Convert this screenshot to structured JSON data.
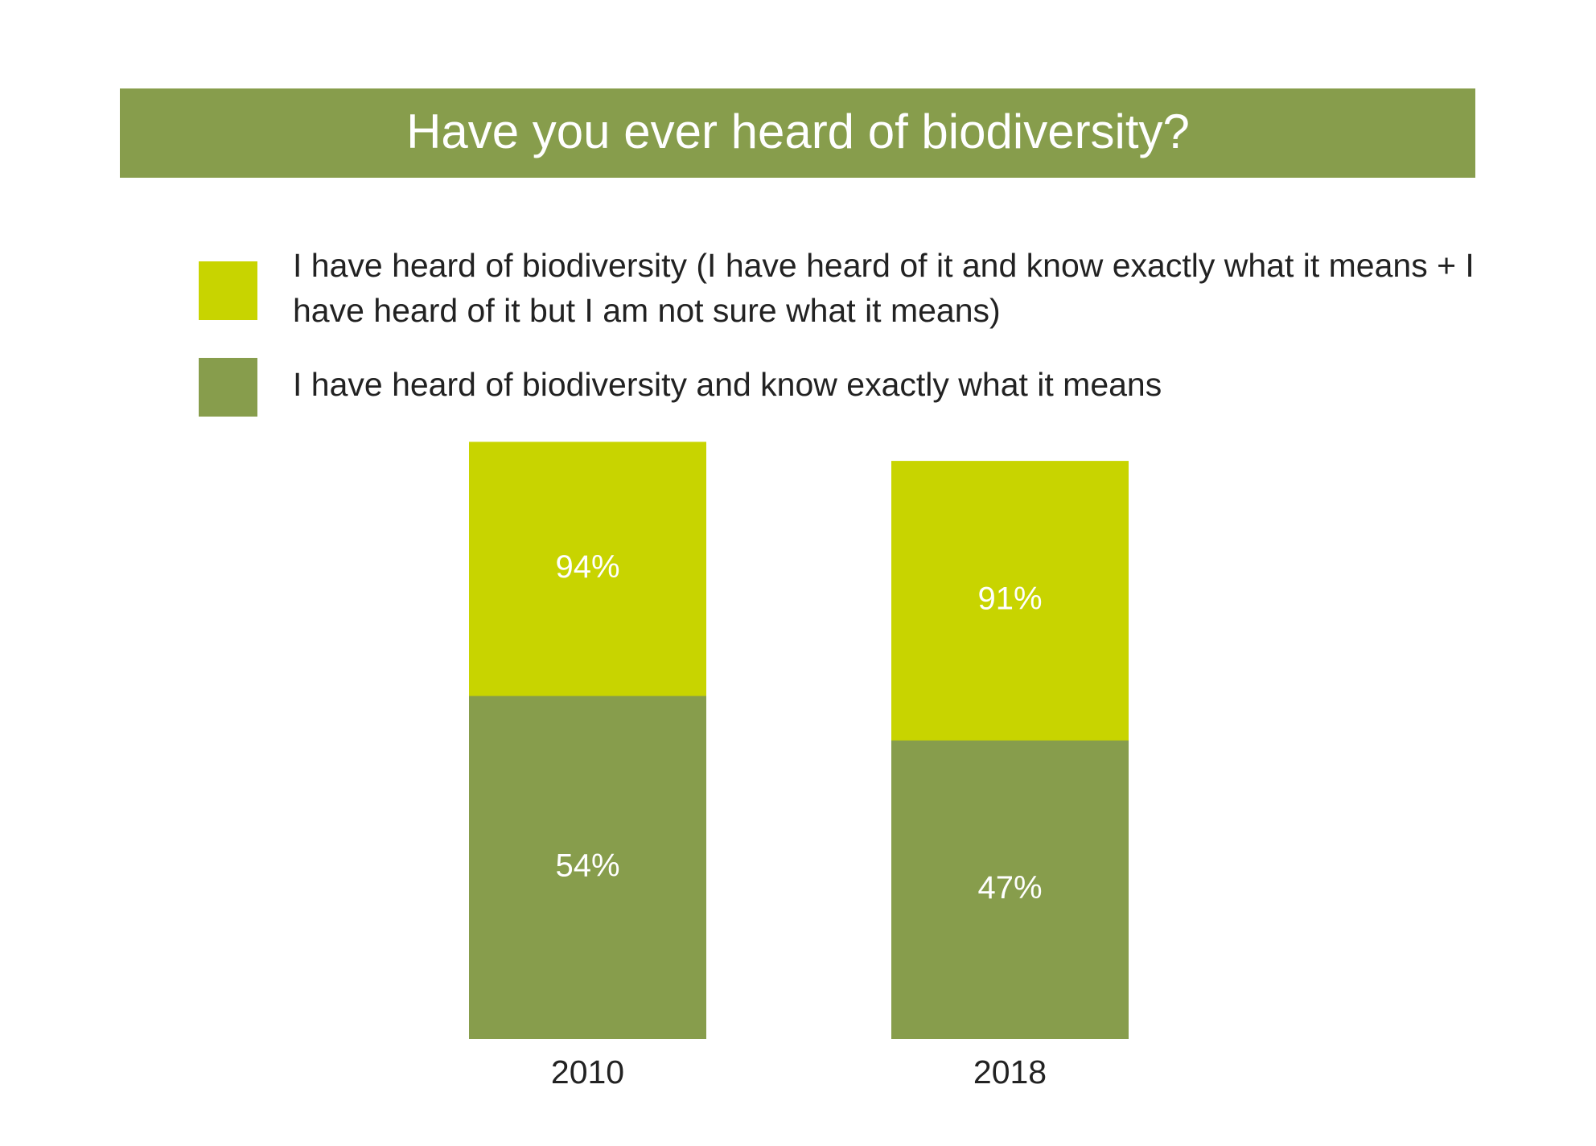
{
  "chart_data": {
    "type": "bar",
    "title": "Have you ever heard of biodiversity?",
    "categories": [
      "2010",
      "2018"
    ],
    "series": [
      {
        "name": "I have heard of biodiversity (I have heard of it and know exactly what it means + I have heard of it but I am not sure what it means)",
        "color": "#c8d400",
        "values": [
          94,
          91
        ],
        "value_labels": [
          "94%",
          "91%"
        ]
      },
      {
        "name": "I have heard of biodiversity and know exactly what it means",
        "color": "#879d4c",
        "values": [
          54,
          47
        ],
        "value_labels": [
          "54%",
          "47%"
        ]
      }
    ]
  }
}
